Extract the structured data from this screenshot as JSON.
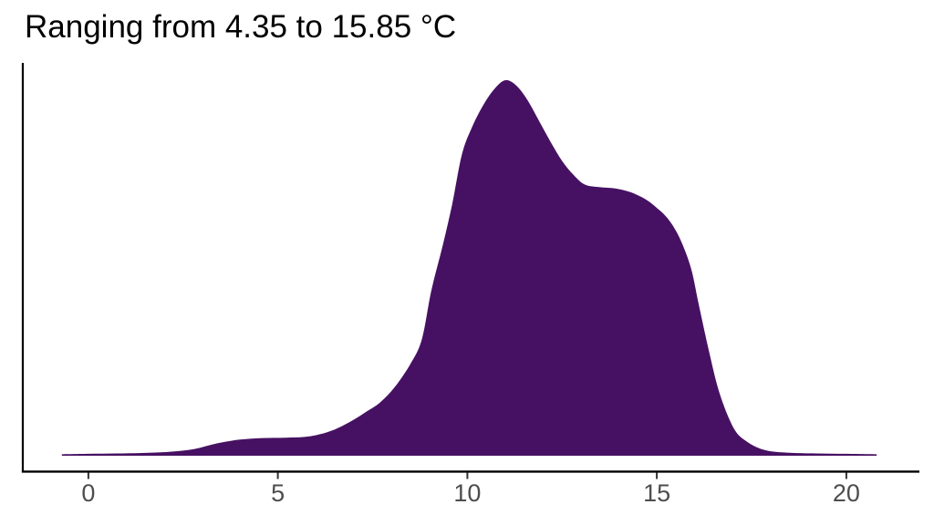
{
  "title": "Ranging from 4.35 to 15.85 °C",
  "chart_data": {
    "type": "area",
    "subtype": "density",
    "title": "Ranging from 4.35 to 15.85 °C",
    "xlabel": "",
    "ylabel": "",
    "x_ticks": [
      0,
      5,
      10,
      15,
      20
    ],
    "xlim": [
      -1.7,
      21.9
    ],
    "data_min_c": 4.35,
    "data_max_c": 15.85,
    "grid": false,
    "legend": false,
    "fill_color": "#471163",
    "axis_color": "#000000",
    "tick_mark_color": "#333333",
    "tick_label_color": "#4d4d4d",
    "points": [
      [
        -0.7,
        0.004
      ],
      [
        0.0,
        0.005
      ],
      [
        0.8,
        0.006
      ],
      [
        1.6,
        0.008
      ],
      [
        2.2,
        0.011
      ],
      [
        2.8,
        0.018
      ],
      [
        3.4,
        0.033
      ],
      [
        4.0,
        0.043
      ],
      [
        4.6,
        0.047
      ],
      [
        5.2,
        0.048
      ],
      [
        5.7,
        0.05
      ],
      [
        6.1,
        0.057
      ],
      [
        6.5,
        0.07
      ],
      [
        6.9,
        0.09
      ],
      [
        7.3,
        0.115
      ],
      [
        7.7,
        0.142
      ],
      [
        8.1,
        0.185
      ],
      [
        8.5,
        0.245
      ],
      [
        8.8,
        0.31
      ],
      [
        9.05,
        0.44
      ],
      [
        9.35,
        0.56
      ],
      [
        9.6,
        0.67
      ],
      [
        9.85,
        0.8
      ],
      [
        10.1,
        0.87
      ],
      [
        10.4,
        0.93
      ],
      [
        10.7,
        0.975
      ],
      [
        11.0,
        1.0
      ],
      [
        11.3,
        0.985
      ],
      [
        11.6,
        0.945
      ],
      [
        11.9,
        0.89
      ],
      [
        12.2,
        0.835
      ],
      [
        12.5,
        0.785
      ],
      [
        12.8,
        0.748
      ],
      [
        13.1,
        0.722
      ],
      [
        13.5,
        0.715
      ],
      [
        13.9,
        0.712
      ],
      [
        14.3,
        0.702
      ],
      [
        14.7,
        0.683
      ],
      [
        15.0,
        0.66
      ],
      [
        15.3,
        0.63
      ],
      [
        15.6,
        0.58
      ],
      [
        15.9,
        0.5
      ],
      [
        16.1,
        0.405
      ],
      [
        16.35,
        0.29
      ],
      [
        16.6,
        0.185
      ],
      [
        16.85,
        0.112
      ],
      [
        17.1,
        0.062
      ],
      [
        17.4,
        0.036
      ],
      [
        17.7,
        0.02
      ],
      [
        18.0,
        0.012
      ],
      [
        18.5,
        0.008
      ],
      [
        19.2,
        0.006
      ],
      [
        20.0,
        0.005
      ],
      [
        20.8,
        0.004
      ]
    ]
  }
}
